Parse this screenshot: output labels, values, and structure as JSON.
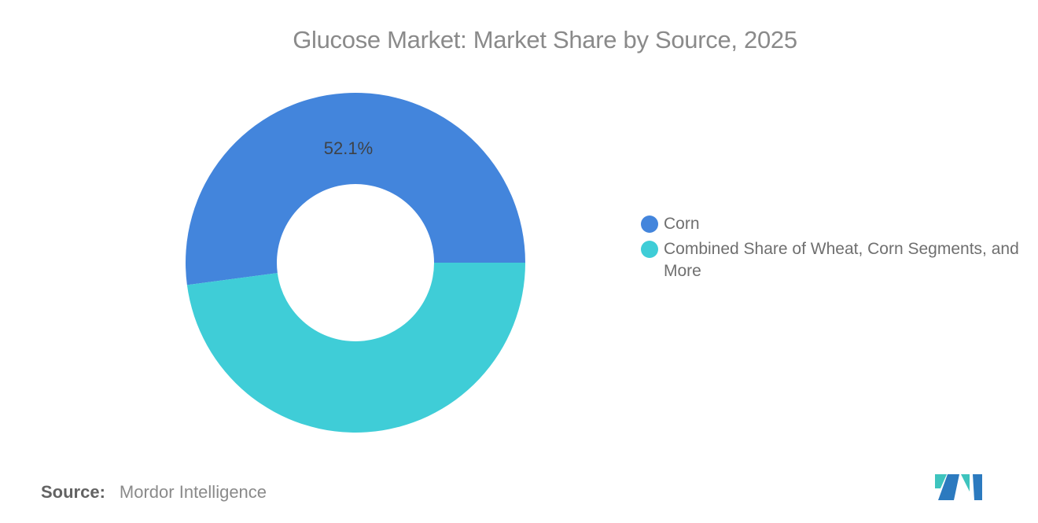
{
  "title": "Glucose Market: Market Share by Source, 2025",
  "chart_data": {
    "type": "pie",
    "subtype": "donut",
    "title": "Glucose Market: Market Share by Source, 2025",
    "start_angle_deg": 262.44,
    "donut_hole_ratio": 0.46,
    "legend_position": "right",
    "segments": [
      {
        "label": "Corn",
        "value": 52.1,
        "color": "#4385DC",
        "data_label": "52.1%"
      },
      {
        "label": "Combined Share of Wheat, Corn Segments, and More",
        "value": 47.9,
        "color": "#3FCDD7",
        "data_label": ""
      }
    ]
  },
  "legend": {
    "items": [
      {
        "label": "Corn",
        "color": "#4385DC"
      },
      {
        "label": "Combined Share of Wheat, Corn Segments, and More",
        "color": "#3FCDD7"
      }
    ]
  },
  "footer": {
    "source_label": "Source:",
    "source_value": "Mordor Intelligence"
  },
  "logo": {
    "name": "Mordor Intelligence",
    "colors": {
      "teal": "#3EC4BE",
      "blue": "#2C7ABF"
    }
  }
}
